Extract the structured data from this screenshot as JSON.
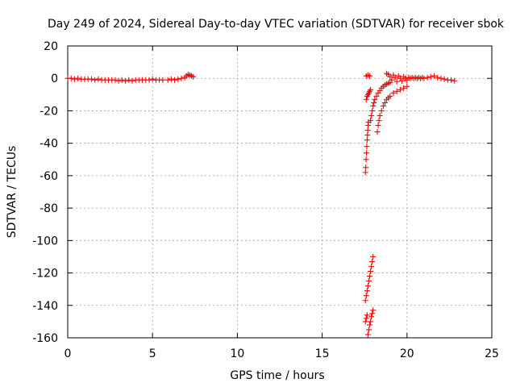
{
  "chart_data": {
    "type": "scatter",
    "title": "Day 249 of 2024, Sidereal Day-to-day VTEC variation (SDTVAR) for receiver sbok",
    "xlabel": "GPS time / hours",
    "ylabel": "SDTVAR / TECUs",
    "xlim": [
      0,
      25
    ],
    "ylim": [
      -160,
      20
    ],
    "xticks": [
      0,
      5,
      10,
      15,
      20,
      25
    ],
    "xtick_labels": [
      "0",
      "5",
      "10",
      "15",
      "20",
      "25"
    ],
    "yticks": [
      20,
      0,
      -20,
      -40,
      -60,
      -80,
      -100,
      -120,
      -140,
      -160
    ],
    "ytick_labels": [
      "20",
      "0",
      "-20",
      "-40",
      "-60",
      "-80",
      "-100",
      "-120",
      "-140",
      "-160"
    ],
    "grid": true,
    "marker": "plus",
    "color": "#ff0000",
    "series": [
      {
        "values": [
          [
            0.0,
            0.0
          ],
          [
            0.2,
            0.0
          ],
          [
            0.4,
            -0.5
          ],
          [
            0.6,
            0.0
          ],
          [
            0.8,
            -0.5
          ],
          [
            1.0,
            -0.5
          ],
          [
            1.2,
            -0.5
          ],
          [
            1.4,
            -0.5
          ],
          [
            1.6,
            -1.0
          ],
          [
            1.8,
            -0.5
          ],
          [
            2.0,
            -1.0
          ],
          [
            2.2,
            -1.0
          ],
          [
            2.4,
            -1.0
          ],
          [
            2.6,
            -1.0
          ],
          [
            2.8,
            -1.0
          ],
          [
            3.0,
            -1.5
          ],
          [
            3.2,
            -1.0
          ],
          [
            3.4,
            -1.5
          ],
          [
            3.6,
            -1.0
          ],
          [
            3.8,
            -1.5
          ],
          [
            4.0,
            -1.0
          ],
          [
            4.2,
            -1.0
          ],
          [
            4.4,
            -1.0
          ],
          [
            4.6,
            -1.0
          ],
          [
            4.8,
            -1.0
          ],
          [
            5.0,
            -0.5
          ],
          [
            5.2,
            -1.0
          ],
          [
            5.4,
            -1.0
          ],
          [
            5.6,
            -1.0
          ],
          [
            5.9,
            -1.0
          ],
          [
            6.1,
            -0.5
          ],
          [
            6.3,
            -1.0
          ],
          [
            6.5,
            -0.5
          ],
          [
            6.7,
            0.0
          ],
          [
            6.9,
            0.5
          ],
          [
            7.0,
            1.5
          ],
          [
            7.1,
            2.5
          ],
          [
            7.2,
            2.0
          ],
          [
            7.3,
            1.5
          ],
          [
            7.4,
            1.0
          ],
          [
            17.55,
            -58.0
          ],
          [
            17.57,
            -55.0
          ],
          [
            17.59,
            -50.0
          ],
          [
            17.61,
            -46.0
          ],
          [
            17.63,
            -42.0
          ],
          [
            17.65,
            -38.0
          ],
          [
            17.67,
            -35.0
          ],
          [
            17.69,
            -32.0
          ],
          [
            17.71,
            -29.0
          ],
          [
            17.73,
            -27.0
          ],
          [
            17.6,
            -13.0
          ],
          [
            17.65,
            -11.0
          ],
          [
            17.7,
            -10.0
          ],
          [
            17.75,
            -9.0
          ],
          [
            17.8,
            -8.0
          ],
          [
            17.85,
            -7.0
          ],
          [
            17.85,
            -26.0
          ],
          [
            17.9,
            -23.0
          ],
          [
            17.95,
            -20.0
          ],
          [
            18.0,
            -17.0
          ],
          [
            18.05,
            -15.0
          ],
          [
            18.1,
            -13.0
          ],
          [
            18.2,
            -11.0
          ],
          [
            18.3,
            -9.0
          ],
          [
            18.4,
            -7.5
          ],
          [
            18.5,
            -6.0
          ],
          [
            18.6,
            -5.0
          ],
          [
            18.7,
            -4.0
          ],
          [
            18.8,
            -3.5
          ],
          [
            18.9,
            -3.0
          ],
          [
            19.0,
            -2.5
          ],
          [
            18.25,
            -33.0
          ],
          [
            18.3,
            -29.0
          ],
          [
            18.35,
            -26.0
          ],
          [
            18.4,
            -23.0
          ],
          [
            18.5,
            -20.0
          ],
          [
            18.6,
            -17.0
          ],
          [
            18.7,
            -15.0
          ],
          [
            18.8,
            -13.0
          ],
          [
            18.9,
            -12.0
          ],
          [
            19.0,
            -11.0
          ],
          [
            19.2,
            -9.0
          ],
          [
            19.4,
            -8.0
          ],
          [
            19.6,
            -7.0
          ],
          [
            19.8,
            -6.0
          ],
          [
            20.0,
            -5.0
          ],
          [
            17.6,
            1.5
          ],
          [
            17.7,
            2.0
          ],
          [
            17.8,
            1.5
          ],
          [
            18.8,
            3.0
          ],
          [
            18.9,
            2.5
          ],
          [
            19.0,
            1.0
          ],
          [
            19.1,
            -1.0
          ],
          [
            19.2,
            2.0
          ],
          [
            19.3,
            0.5
          ],
          [
            19.4,
            -2.0
          ],
          [
            19.5,
            1.5
          ],
          [
            19.6,
            0.0
          ],
          [
            19.7,
            -1.5
          ],
          [
            19.8,
            1.0
          ],
          [
            19.9,
            0.0
          ],
          [
            20.0,
            -1.0
          ],
          [
            20.1,
            0.5
          ],
          [
            20.2,
            0.0
          ],
          [
            20.3,
            0.5
          ],
          [
            20.4,
            0.0
          ],
          [
            20.5,
            0.5
          ],
          [
            20.6,
            0.0
          ],
          [
            20.7,
            0.5
          ],
          [
            20.8,
            0.0
          ],
          [
            20.9,
            0.5
          ],
          [
            21.0,
            0.0
          ],
          [
            21.2,
            0.5
          ],
          [
            21.4,
            1.0
          ],
          [
            21.6,
            1.5
          ],
          [
            21.8,
            0.5
          ],
          [
            22.0,
            0.0
          ],
          [
            22.2,
            -0.5
          ],
          [
            22.4,
            -1.0
          ],
          [
            22.6,
            -1.0
          ],
          [
            22.8,
            -1.5
          ],
          [
            17.55,
            -137.0
          ],
          [
            17.6,
            -134.0
          ],
          [
            17.65,
            -131.0
          ],
          [
            17.7,
            -128.0
          ],
          [
            17.75,
            -125.0
          ],
          [
            17.8,
            -122.0
          ],
          [
            17.85,
            -119.0
          ],
          [
            17.9,
            -116.0
          ],
          [
            17.95,
            -113.0
          ],
          [
            18.0,
            -110.0
          ],
          [
            17.55,
            -150.0
          ],
          [
            17.6,
            -148.0
          ],
          [
            17.65,
            -146.0
          ],
          [
            17.7,
            -158.0
          ],
          [
            17.75,
            -155.0
          ],
          [
            17.8,
            -152.0
          ],
          [
            17.85,
            -150.0
          ],
          [
            17.9,
            -147.0
          ],
          [
            17.95,
            -145.0
          ],
          [
            18.0,
            -143.0
          ]
        ]
      }
    ]
  }
}
